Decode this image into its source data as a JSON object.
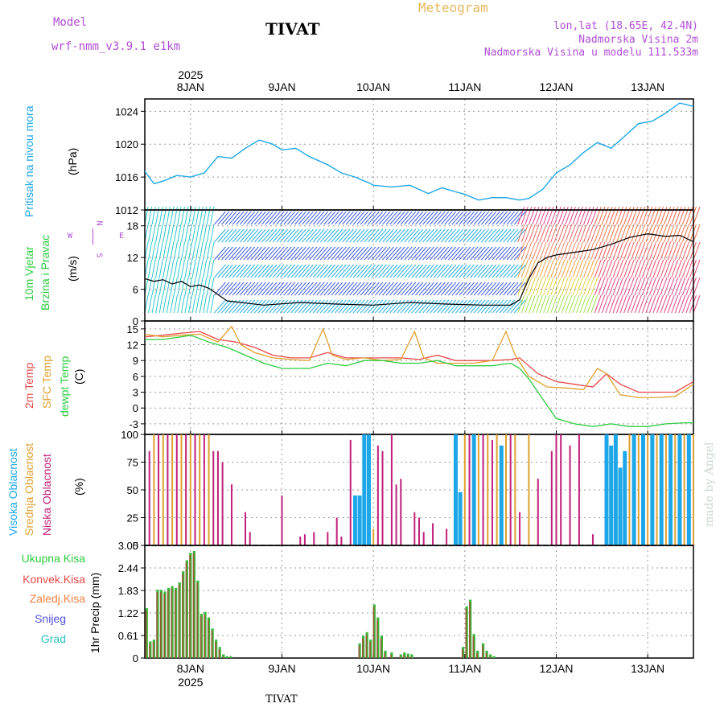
{
  "header": {
    "model_label": "Model",
    "model_name": "wrf-nmm_v3.9.1 e1km",
    "chart_title": "Meteogram",
    "station": "TIVAT",
    "lonlat": "lon,lat (18.65E, 42.4N)",
    "altitude": "Nadmorska Visina 2m",
    "model_altitude": "Nadmorska Visina u modelu 111.533m",
    "footer_station": "TIVAT",
    "watermark": "made by Angel"
  },
  "dates": {
    "year": "2025",
    "days": [
      "8JAN",
      "9JAN",
      "10JAN",
      "11JAN",
      "12JAN",
      "13JAN"
    ]
  },
  "colors": {
    "pressure": "#1ea7e8",
    "temp2m": "#e84848",
    "sfc": "#e0a030",
    "dewpt": "#2ecc40",
    "high_cloud": "#1ea7e8",
    "mid_cloud": "#e0a030",
    "low_cloud": "#c0207a",
    "total_precip": "#3cb83c",
    "conv_precip": "#c03030",
    "speed_line": "#000000"
  },
  "labels": {
    "pressure": {
      "title": "Pritisak na nivou mora",
      "unit": "(hPa)"
    },
    "wind": {
      "title1": "10m Vjetar",
      "title2": "Brzina i Pravac",
      "unit": "(m/s)",
      "compass_n": "N",
      "compass_w": "W",
      "compass_e": "E",
      "compass_s": "S"
    },
    "temp": {
      "t2m": "2m Temp",
      "sfc": "SFC Temp",
      "dew": "dewpt Temp",
      "unit": "(C)"
    },
    "cloud": {
      "high": "Visoka Oblacnost",
      "mid": "Srednja Oblacnost",
      "low": "Niska Oblacnost",
      "unit": "(%)"
    },
    "precip": {
      "total": "Ukupna Kisa",
      "conv": "Konvek.Kisa",
      "frozen": "Zaledj.Kisa",
      "snow": "Snijeg",
      "hail": "Grad",
      "unit": "1hr Precip (mm)"
    }
  },
  "legend_colors": {
    "total": "#2ecc40",
    "conv": "#e84848",
    "frozen": "#f08040",
    "snow": "#5050e0",
    "hail": "#30c0c0"
  },
  "chart_data": [
    {
      "type": "line",
      "name": "Sea-level pressure",
      "x_start": 7.5,
      "x_end": 13.5,
      "x_unit": "day of January 2025",
      "ylim": [
        1012,
        1025.5
      ],
      "yticks": [
        "1012",
        "1016",
        "1020",
        "1024"
      ],
      "grid": true,
      "x": [
        7.5,
        7.6,
        7.7,
        7.85,
        8.0,
        8.15,
        8.3,
        8.45,
        8.6,
        8.75,
        8.9,
        9.0,
        9.15,
        9.3,
        9.5,
        9.65,
        9.8,
        9.95,
        10.0,
        10.2,
        10.4,
        10.6,
        10.75,
        10.9,
        11.0,
        11.15,
        11.3,
        11.45,
        11.6,
        11.7,
        11.85,
        12.0,
        12.15,
        12.3,
        12.45,
        12.6,
        12.75,
        12.9,
        13.05,
        13.2,
        13.35,
        13.5
      ],
      "values": [
        1016.7,
        1015.2,
        1015.5,
        1016.2,
        1016.0,
        1016.5,
        1018.5,
        1018.3,
        1019.5,
        1020.5,
        1020.0,
        1019.3,
        1019.5,
        1018.5,
        1017.5,
        1016.5,
        1016.0,
        1015.3,
        1015.0,
        1014.8,
        1015.0,
        1014.0,
        1014.7,
        1014.2,
        1013.9,
        1013.2,
        1013.5,
        1013.5,
        1013.2,
        1013.4,
        1014.5,
        1016.5,
        1017.5,
        1019.0,
        1020.2,
        1019.5,
        1021.0,
        1022.5,
        1022.8,
        1023.8,
        1025.0,
        1024.6
      ]
    },
    {
      "type": "line",
      "name": "10m wind speed",
      "ylim": [
        0,
        21
      ],
      "yticks": [
        "0",
        "6",
        "12",
        "18"
      ],
      "grid": true,
      "x": [
        7.5,
        7.6,
        7.7,
        7.8,
        7.9,
        8.0,
        8.1,
        8.2,
        8.4,
        8.8,
        9.2,
        9.6,
        10.0,
        10.4,
        10.8,
        11.2,
        11.5,
        11.6,
        11.7,
        11.8,
        11.9,
        12.0,
        12.2,
        12.4,
        12.6,
        12.8,
        13.0,
        13.2,
        13.35,
        13.5
      ],
      "values": [
        8.0,
        7.5,
        7.8,
        7.0,
        7.5,
        6.5,
        6.8,
        6.2,
        3.8,
        3.0,
        3.5,
        3.2,
        3.0,
        3.5,
        3.2,
        3.0,
        3.0,
        4.0,
        8.0,
        11.0,
        12.0,
        12.5,
        13.0,
        13.5,
        14.5,
        15.8,
        16.5,
        16.0,
        16.2,
        15.0
      ],
      "barb_hue_bands": [
        "cyan",
        "blue",
        "yellow",
        "red"
      ]
    },
    {
      "type": "line",
      "name": "Temperature",
      "ylim": [
        -5,
        16.5
      ],
      "yticks": [
        "-3",
        "0",
        "3",
        "6",
        "9",
        "12",
        "15"
      ],
      "grid": true,
      "series": [
        {
          "key": "t2m",
          "x": [
            7.5,
            7.7,
            7.9,
            8.1,
            8.3,
            8.5,
            8.7,
            8.9,
            9.1,
            9.3,
            9.5,
            9.7,
            9.9,
            10.1,
            10.3,
            10.5,
            10.7,
            10.9,
            11.1,
            11.3,
            11.5,
            11.6,
            11.8,
            12.0,
            12.2,
            12.4,
            12.55,
            12.7,
            12.9,
            13.1,
            13.3,
            13.5
          ],
          "values": [
            13.5,
            13.8,
            14.2,
            14.5,
            13.0,
            12.5,
            11.5,
            10.0,
            9.5,
            9.5,
            10.5,
            9.5,
            9.5,
            9.5,
            9.5,
            9.2,
            10.0,
            9.0,
            9.0,
            9.0,
            9.2,
            9.5,
            6.5,
            5.0,
            4.5,
            4.0,
            6.5,
            4.5,
            3.0,
            3.0,
            3.0,
            5.0
          ]
        },
        {
          "key": "sfc",
          "x": [
            7.5,
            7.7,
            7.9,
            8.1,
            8.3,
            8.45,
            8.55,
            8.7,
            8.9,
            9.1,
            9.3,
            9.45,
            9.55,
            9.7,
            9.9,
            10.1,
            10.3,
            10.45,
            10.55,
            10.7,
            10.9,
            11.1,
            11.3,
            11.45,
            11.55,
            11.7,
            11.9,
            12.1,
            12.3,
            12.45,
            12.55,
            12.7,
            12.9,
            13.1,
            13.3,
            13.5
          ],
          "values": [
            14.0,
            13.5,
            13.8,
            14.0,
            12.5,
            15.5,
            12.0,
            10.5,
            9.5,
            9.2,
            9.0,
            15.0,
            10.0,
            9.2,
            9.5,
            9.0,
            9.2,
            14.5,
            9.5,
            8.5,
            8.5,
            8.5,
            9.0,
            14.5,
            10.0,
            6.0,
            4.0,
            3.8,
            3.5,
            7.5,
            6.5,
            2.5,
            2.0,
            2.0,
            2.2,
            4.5
          ]
        },
        {
          "key": "dewpt",
          "x": [
            7.5,
            7.7,
            7.9,
            8.0,
            8.2,
            8.4,
            8.6,
            8.8,
            9.0,
            9.3,
            9.5,
            9.7,
            9.9,
            10.1,
            10.3,
            10.5,
            10.7,
            10.9,
            11.1,
            11.3,
            11.5,
            11.6,
            11.7,
            11.8,
            11.9,
            12.0,
            12.2,
            12.4,
            12.6,
            12.8,
            13.0,
            13.2,
            13.4,
            13.5
          ],
          "values": [
            13.0,
            13.0,
            13.5,
            13.8,
            12.5,
            11.5,
            10.0,
            8.5,
            7.5,
            7.5,
            8.5,
            8.0,
            9.0,
            9.0,
            8.5,
            8.5,
            9.0,
            8.0,
            8.0,
            8.0,
            8.5,
            7.5,
            5.5,
            3.0,
            0.5,
            -2.0,
            -3.0,
            -3.5,
            -3.0,
            -3.5,
            -3.5,
            -3.0,
            -2.8,
            -2.8
          ]
        }
      ]
    },
    {
      "type": "bar",
      "name": "Cloud cover",
      "ylim": [
        0,
        100
      ],
      "yticks": [
        "0",
        "25",
        "50",
        "75",
        "100"
      ],
      "grid": true,
      "bars": [
        [
          7.55,
          "low",
          85
        ],
        [
          7.6,
          "mid",
          100
        ],
        [
          7.65,
          "low",
          100
        ],
        [
          7.7,
          "mid",
          100
        ],
        [
          7.75,
          "low",
          100
        ],
        [
          7.8,
          "mid",
          100
        ],
        [
          7.85,
          "low",
          100
        ],
        [
          7.9,
          "mid",
          100
        ],
        [
          7.95,
          "low",
          100
        ],
        [
          8.0,
          "mid",
          100
        ],
        [
          8.05,
          "low",
          100
        ],
        [
          8.1,
          "mid",
          100
        ],
        [
          8.15,
          "low",
          100
        ],
        [
          8.2,
          "mid",
          100
        ],
        [
          8.25,
          "low",
          85
        ],
        [
          8.3,
          "low",
          85
        ],
        [
          8.35,
          "low",
          75
        ],
        [
          8.45,
          "low",
          55
        ],
        [
          8.6,
          "low",
          30
        ],
        [
          8.65,
          "low",
          12
        ],
        [
          9.0,
          "low",
          45
        ],
        [
          9.2,
          "low",
          8
        ],
        [
          9.25,
          "low",
          10
        ],
        [
          9.35,
          "low",
          12
        ],
        [
          9.5,
          "low",
          12
        ],
        [
          9.6,
          "low",
          25
        ],
        [
          9.65,
          "low",
          8
        ],
        [
          9.75,
          "low",
          95
        ],
        [
          9.8,
          "high",
          45
        ],
        [
          9.85,
          "high",
          45
        ],
        [
          9.9,
          "high",
          100
        ],
        [
          9.95,
          "high",
          100
        ],
        [
          10.0,
          "mid",
          15
        ],
        [
          10.05,
          "low",
          90
        ],
        [
          10.1,
          "low",
          85
        ],
        [
          10.2,
          "low",
          100
        ],
        [
          10.25,
          "low",
          55
        ],
        [
          10.3,
          "low",
          60
        ],
        [
          10.45,
          "low",
          30
        ],
        [
          10.5,
          "low",
          25
        ],
        [
          10.55,
          "low",
          12
        ],
        [
          10.65,
          "low",
          20
        ],
        [
          10.8,
          "low",
          15
        ],
        [
          10.9,
          "high",
          100
        ],
        [
          10.95,
          "high",
          48
        ],
        [
          11.0,
          "mid",
          100
        ],
        [
          11.05,
          "low",
          100
        ],
        [
          11.1,
          "high",
          100
        ],
        [
          11.15,
          "mid",
          100
        ],
        [
          11.2,
          "low",
          100
        ],
        [
          11.25,
          "mid",
          100
        ],
        [
          11.3,
          "low",
          95
        ],
        [
          11.35,
          "mid",
          100
        ],
        [
          11.4,
          "high",
          90
        ],
        [
          11.45,
          "mid",
          100
        ],
        [
          11.5,
          "low",
          100
        ],
        [
          11.55,
          "mid",
          100
        ],
        [
          11.6,
          "low",
          30
        ],
        [
          11.7,
          "mid",
          100
        ],
        [
          11.8,
          "low",
          60
        ],
        [
          11.95,
          "low",
          85
        ],
        [
          12.0,
          "low",
          100
        ],
        [
          12.05,
          "low",
          100
        ],
        [
          12.15,
          "low",
          90
        ],
        [
          12.25,
          "low",
          100
        ],
        [
          12.4,
          "low",
          10
        ],
        [
          12.55,
          "high",
          100
        ],
        [
          12.6,
          "high",
          90
        ],
        [
          12.65,
          "high",
          100
        ],
        [
          12.7,
          "high",
          70
        ],
        [
          12.75,
          "high",
          85
        ],
        [
          12.8,
          "mid",
          100
        ],
        [
          12.85,
          "high",
          100
        ],
        [
          12.9,
          "mid",
          100
        ],
        [
          12.95,
          "high",
          100
        ],
        [
          13.0,
          "mid",
          100
        ],
        [
          13.05,
          "high",
          100
        ],
        [
          13.1,
          "mid",
          100
        ],
        [
          13.15,
          "high",
          100
        ],
        [
          13.2,
          "mid",
          100
        ],
        [
          13.25,
          "high",
          100
        ],
        [
          13.3,
          "mid",
          100
        ],
        [
          13.35,
          "high",
          100
        ],
        [
          13.4,
          "mid",
          100
        ],
        [
          13.45,
          "high",
          100
        ],
        [
          13.5,
          "mid",
          100
        ]
      ]
    },
    {
      "type": "bar",
      "name": "1hr precipitation",
      "ylim": [
        0,
        3.05
      ],
      "yticks": [
        "0",
        "0.61",
        "1.22",
        "1.83",
        "2.44",
        "3.05"
      ],
      "grid": true,
      "bars": [
        [
          7.52,
          1.35
        ],
        [
          7.56,
          0.45
        ],
        [
          7.6,
          0.5
        ],
        [
          7.64,
          1.85
        ],
        [
          7.68,
          1.85
        ],
        [
          7.72,
          1.8
        ],
        [
          7.76,
          1.9
        ],
        [
          7.8,
          1.95
        ],
        [
          7.84,
          1.9
        ],
        [
          7.88,
          2.05
        ],
        [
          7.92,
          2.35
        ],
        [
          7.96,
          2.65
        ],
        [
          8.0,
          2.85
        ],
        [
          8.04,
          2.9
        ],
        [
          8.08,
          2.1
        ],
        [
          8.12,
          1.2
        ],
        [
          8.16,
          1.25
        ],
        [
          8.2,
          1.1
        ],
        [
          8.24,
          0.8
        ],
        [
          8.28,
          0.5
        ],
        [
          8.32,
          0.3
        ],
        [
          8.36,
          0.1
        ],
        [
          8.4,
          0.05
        ],
        [
          8.44,
          0.05
        ],
        [
          9.85,
          0.4
        ],
        [
          9.89,
          0.6
        ],
        [
          9.93,
          0.7
        ],
        [
          9.97,
          0.5
        ],
        [
          10.01,
          1.45
        ],
        [
          10.05,
          1.1
        ],
        [
          10.09,
          0.6
        ],
        [
          10.13,
          0.2
        ],
        [
          10.2,
          0.15
        ],
        [
          10.3,
          0.1
        ],
        [
          10.34,
          0.15
        ],
        [
          10.38,
          0.12
        ],
        [
          10.42,
          0.1
        ],
        [
          10.98,
          0.3
        ],
        [
          11.02,
          1.4
        ],
        [
          11.06,
          1.58
        ],
        [
          11.1,
          0.65
        ],
        [
          11.14,
          0.2
        ],
        [
          11.2,
          0.4
        ],
        [
          11.24,
          0.2
        ],
        [
          11.28,
          0.1
        ],
        [
          11.32,
          0.05
        ]
      ]
    }
  ]
}
